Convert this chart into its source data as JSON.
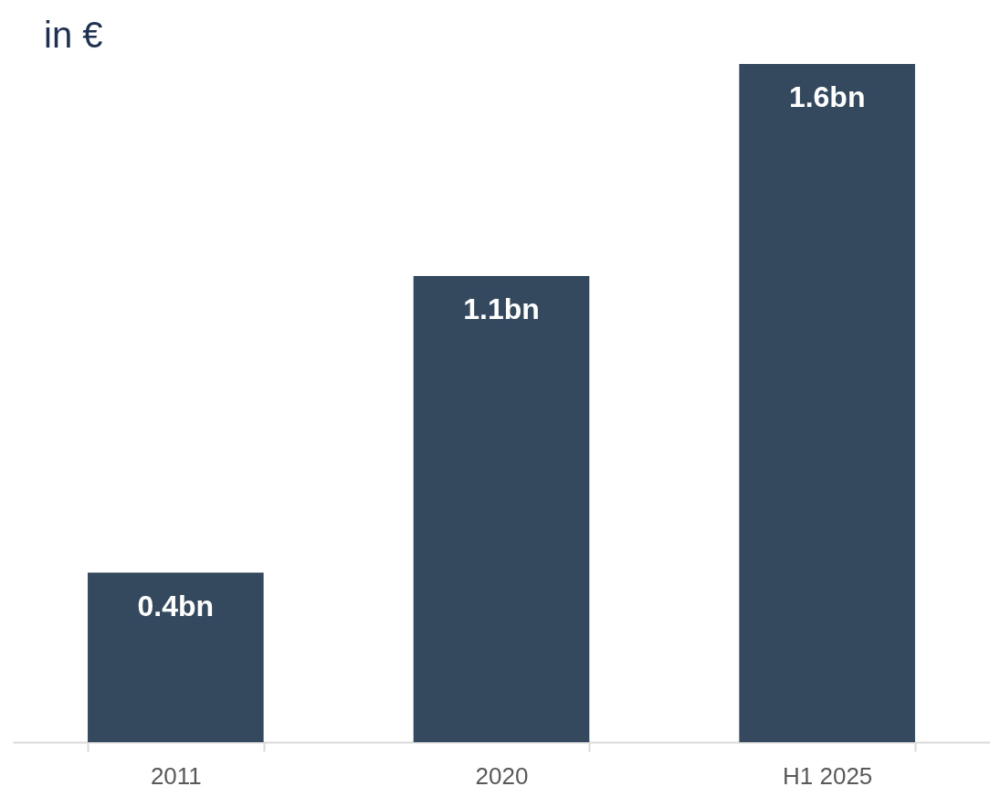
{
  "chart_data": {
    "type": "bar",
    "title": "in €",
    "categories": [
      "2011",
      "2020",
      "H1 2025"
    ],
    "values": [
      0.4,
      1.1,
      1.6
    ],
    "value_labels": [
      "0.4bn",
      "1.1bn",
      "1.6bn"
    ],
    "color": "#34495e"
  }
}
